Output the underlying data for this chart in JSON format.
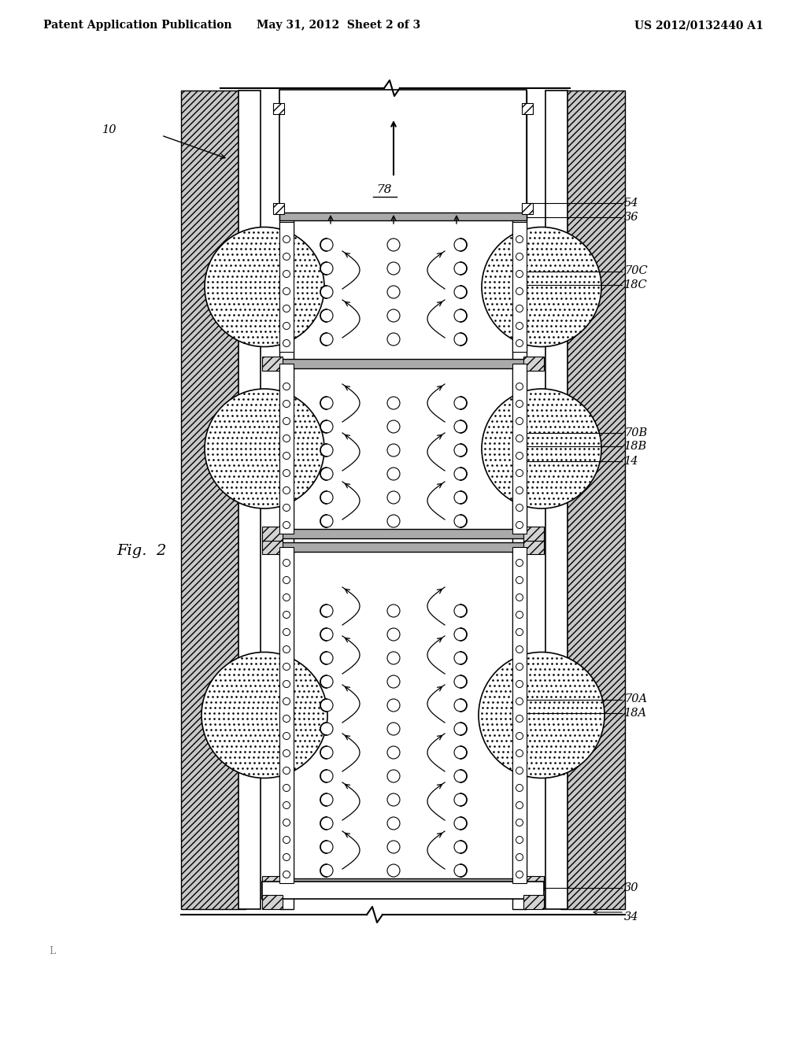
{
  "title_left": "Patent Application Publication",
  "title_center": "May 31, 2012  Sheet 2 of 3",
  "title_right": "US 2012/0132440 A1",
  "fig_label": "Fig.  2",
  "label_10": "10",
  "label_78": "78",
  "label_54": "54",
  "label_36": "36",
  "label_70C": "70C",
  "label_18C": "18C",
  "label_70B": "70B",
  "label_18B": "18B",
  "label_14": "14",
  "label_70A": "70A",
  "label_18A": "18A",
  "label_30": "30",
  "label_34": "34",
  "bg_color": "#ffffff",
  "line_color": "#000000"
}
